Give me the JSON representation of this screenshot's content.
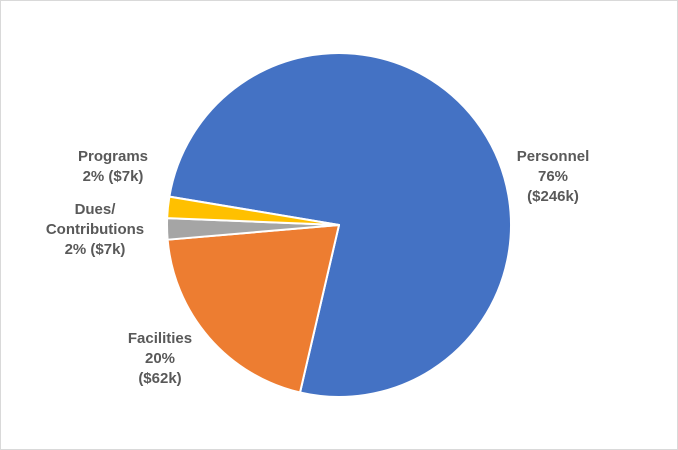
{
  "chart_data": {
    "type": "pie",
    "title": "",
    "legend": "none",
    "slices": [
      {
        "name": "Personnel",
        "percent": 76,
        "value_k": 246,
        "label_lines": [
          "Personnel",
          "76%",
          "($246k)"
        ],
        "color": "#4472C4"
      },
      {
        "name": "Facilities",
        "percent": 20,
        "value_k": 62,
        "label_lines": [
          "Facilities",
          "20%",
          "($62k)"
        ],
        "color": "#ED7D31"
      },
      {
        "name": "Dues/ Contributions",
        "percent": 2,
        "value_k": 7,
        "label_lines": [
          "Dues/",
          "Contributions",
          "2% ($7k)"
        ],
        "color": "#A5A5A5"
      },
      {
        "name": "Programs",
        "percent": 2,
        "value_k": 7,
        "label_lines": [
          "Programs",
          "2% ($7k)"
        ],
        "color": "#FFC000"
      }
    ]
  }
}
